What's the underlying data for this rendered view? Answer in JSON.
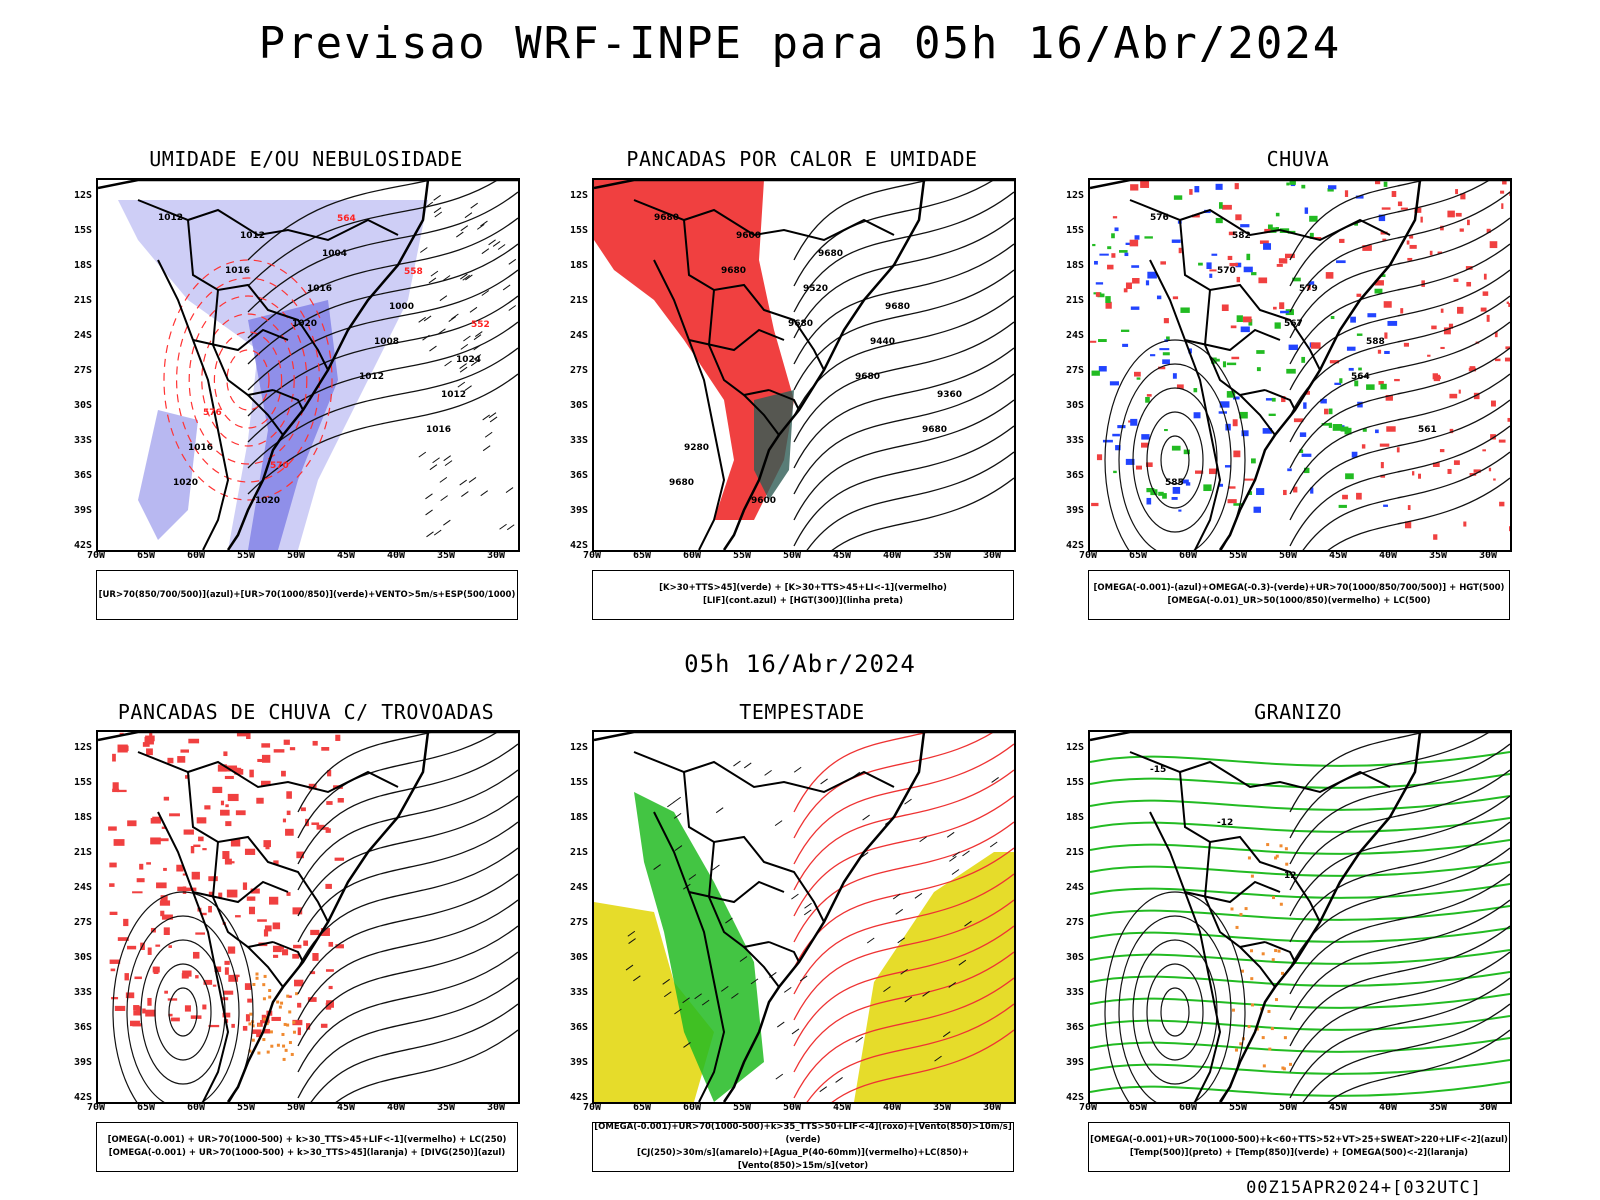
{
  "main_title": "Previsao WRF-INPE  para 05h 16/Abr/2024",
  "mid_title": "05h 16/Abr/2024",
  "footer": "00Z15APR2024+[032UTC]",
  "y_ticks": [
    "12S",
    "15S",
    "18S",
    "21S",
    "24S",
    "27S",
    "30S",
    "33S",
    "36S",
    "39S",
    "42S"
  ],
  "x_ticks": [
    "70W",
    "65W",
    "60W",
    "55W",
    "50W",
    "45W",
    "40W",
    "35W",
    "30W"
  ],
  "colors": {
    "blue_shade": "#8888e8",
    "red": "#f04040",
    "green": "#22bb22",
    "blue": "#2244ff",
    "yellow": "#e6dc2a",
    "orange": "#f08a30",
    "dark_teal": "#2f5c55"
  },
  "panels": [
    {
      "title": "UMIDADE E/OU NEBULOSIDADE",
      "caption": [
        "[UR>70(850/700/500)](azul)+[UR>70(1000/850)](verde)+VENTO>5m/s+ESP(500/1000)"
      ],
      "labels": [
        "1012",
        "1016",
        "1020",
        "1012",
        "1016",
        "1020",
        "1012",
        "1016",
        "1008",
        "1012",
        "1016",
        "1020",
        "1004",
        "1000",
        "1024",
        "576",
        "570",
        "564",
        "558",
        "552"
      ]
    },
    {
      "title": "PANCADAS POR CALOR E UMIDADE",
      "caption": [
        "[K>30+TTS>45](verde) + [K>30+TTS>45+LI<-1](vermelho)",
        "[LIF](cont.azul) + [HGT(300)](linha preta)"
      ],
      "labels": [
        "9680",
        "9680",
        "9680",
        "9680",
        "9680",
        "9680",
        "9600",
        "9520",
        "9440",
        "9360",
        "9280",
        "9600",
        "9680",
        "9680"
      ]
    },
    {
      "title": "CHUVA",
      "caption": [
        "[OMEGA(-0.001)-(azul)+OMEGA(-0.3)-(verde)+UR>70(1000/850/700/500)] + HGT(500)",
        "[OMEGA(-0.01)_UR>50(1000/850)(vermelho) + LC(500)"
      ],
      "labels": [
        "576",
        "570",
        "567",
        "564",
        "561",
        "585",
        "582",
        "579",
        "588"
      ]
    },
    {
      "title": "PANCADAS DE CHUVA C/ TROVOADAS",
      "caption": [
        "[OMEGA(-0.001) + UR>70(1000-500) + k>30_TTS>45+LIF<-1](vermelho) + LC(250)",
        "[OMEGA(-0.001) + UR>70(1000-500) + k>30_TTS>45](laranja) + [DIVG(250)](azul)"
      ],
      "labels": []
    },
    {
      "title": "TEMPESTADE",
      "caption": [
        "[OMEGA(-0.001)+UR>70(1000-500)+k>35_TTS>50+LIF<-4](roxo)+[Vento(850)>10m/s](verde)",
        "[CJ(250)>30m/s](amarelo)+[Agua_P(40-60mm)](vermelho)+LC(850)+[Vento(850)>15m/s](vetor)"
      ],
      "labels": []
    },
    {
      "title": "GRANIZO",
      "caption": [
        "[OMEGA(-0.001)+UR>70(1000-500)+k<60+TTS>52+VT>25+SWEAT>220+LIF<-2](azul)",
        "[Temp(500)](preto) + [Temp(850)](verde) + [OMEGA(500)<-2](laranja)"
      ],
      "labels": [
        "-15",
        "-12",
        "12"
      ]
    }
  ]
}
